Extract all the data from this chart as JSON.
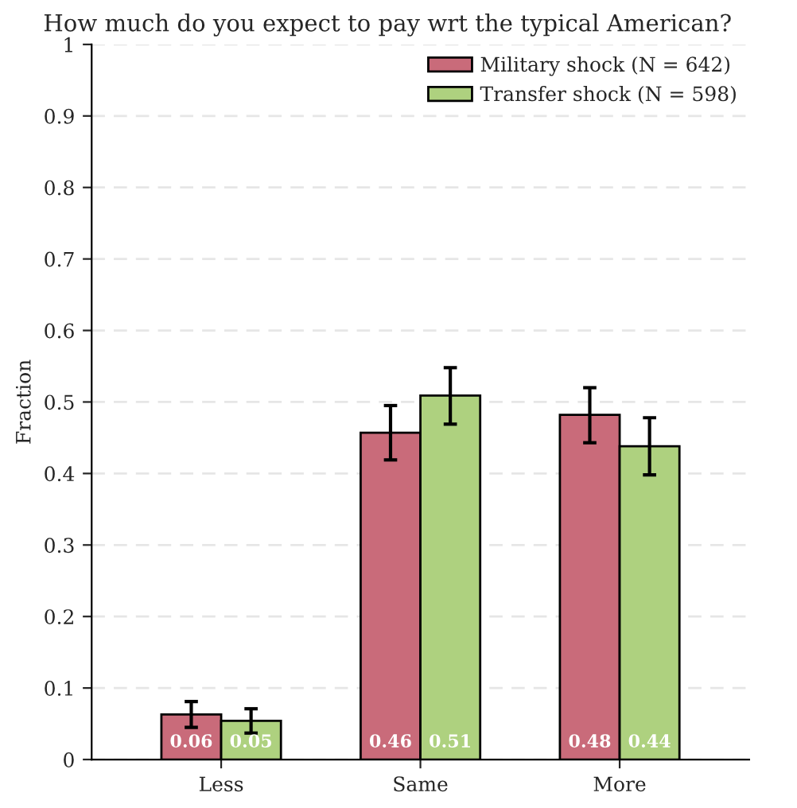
{
  "chart_data": {
    "type": "bar",
    "title": "How much do you expect to pay wrt the typical American?",
    "ylabel": "Fraction",
    "categories": [
      "Less",
      "Same",
      "More"
    ],
    "series": [
      {
        "name": "Military shock (N = 642)",
        "color": "#c96b7a",
        "values": [
          0.063,
          0.457,
          0.482
        ],
        "errors": [
          [
            0.045,
            0.081
          ],
          [
            0.419,
            0.495
          ],
          [
            0.443,
            0.52
          ]
        ],
        "value_labels": [
          "0.06",
          "0.46",
          "0.48"
        ]
      },
      {
        "name": "Transfer shock (N = 598)",
        "color": "#aed17f",
        "values": [
          0.054,
          0.509,
          0.438
        ],
        "errors": [
          [
            0.037,
            0.071
          ],
          [
            0.469,
            0.548
          ],
          [
            0.398,
            0.478
          ]
        ],
        "value_labels": [
          "0.05",
          "0.51",
          "0.44"
        ]
      }
    ],
    "ylim": [
      0,
      1
    ],
    "yticks": [
      0,
      0.1,
      0.2,
      0.3,
      0.4,
      0.5,
      0.6,
      0.7,
      0.8,
      0.9,
      1
    ],
    "grid": "y",
    "legend": "top right"
  }
}
